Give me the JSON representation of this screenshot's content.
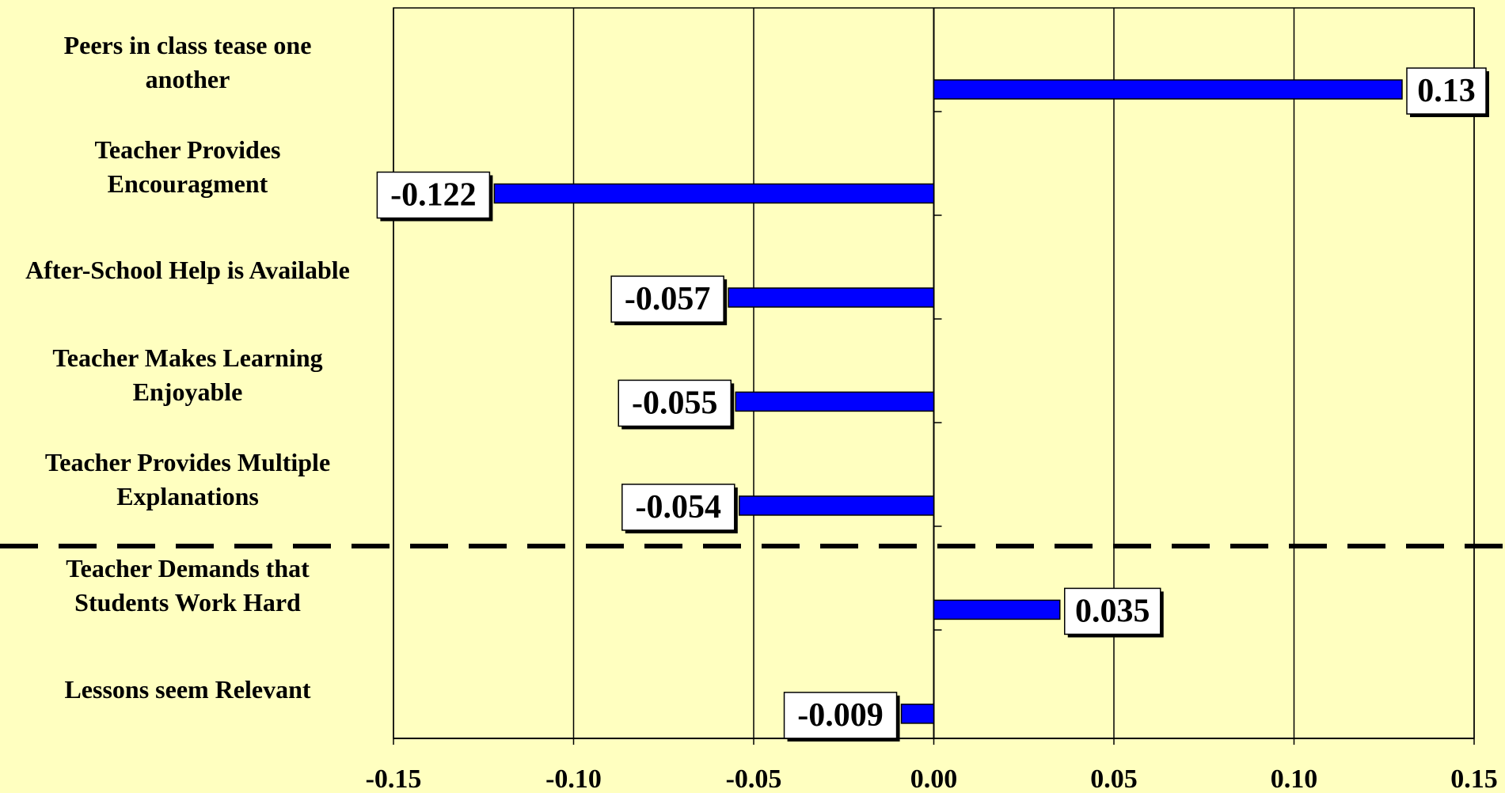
{
  "chart_data": {
    "type": "bar",
    "orientation": "horizontal",
    "categories": [
      "Peers in class tease one another",
      "Teacher Provides Encouragment",
      "After-School Help is Available",
      "Teacher Makes Learning Enjoyable",
      "Teacher Provides Multiple Explanations",
      "Teacher Demands that Students Work Hard",
      "Lessons seem Relevant"
    ],
    "category_label_lines": [
      [
        "Peers in class tease one",
        "another"
      ],
      [
        "Teacher Provides",
        "Encouragment"
      ],
      [
        "After-School Help is Available"
      ],
      [
        "Teacher Makes Learning",
        "Enjoyable"
      ],
      [
        "Teacher Provides Multiple",
        "Explanations"
      ],
      [
        "Teacher Demands that",
        "Students Work Hard"
      ],
      [
        "Lessons seem Relevant"
      ]
    ],
    "values": [
      0.13,
      -0.122,
      -0.057,
      -0.055,
      -0.054,
      0.035,
      -0.009
    ],
    "value_labels": [
      "0.13",
      "-0.122",
      "-0.057",
      "-0.055",
      "-0.054",
      "0.035",
      "-0.009"
    ],
    "xlim": [
      -0.15,
      0.15
    ],
    "x_ticks": [
      -0.15,
      -0.1,
      -0.05,
      0.0,
      0.05,
      0.1,
      0.15
    ],
    "x_tick_labels": [
      "-0.15",
      "-0.10",
      "-0.05",
      "0.00",
      "0.05",
      "0.10",
      "0.15"
    ],
    "grid": "vertical",
    "separator": "dashed line between the fifth and sixth categories",
    "bar_color": "#0000FF",
    "background_color": "#FFFFC0",
    "label_box_color": "#FFFFFF",
    "title": "",
    "xlabel": "",
    "ylabel": ""
  }
}
